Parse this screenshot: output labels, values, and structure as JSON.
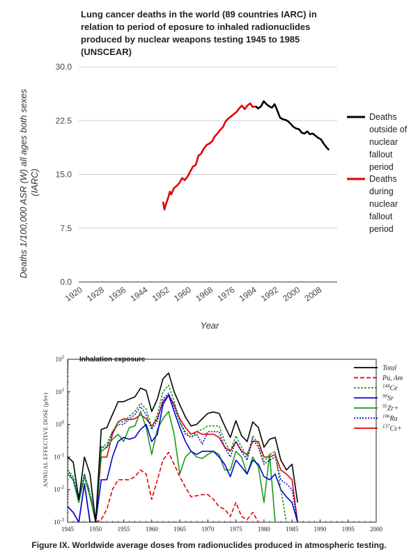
{
  "chart_data": [
    {
      "type": "line",
      "title": "Lung cancer deaths in the world (89 countries IARC) in relation to period of eposure to inhaled radionuclides produced by nuclear weapons testing 1945 to 1985 (UNSCEAR)",
      "xlabel": "Year",
      "ylabel": "Deaths 1/100,000 ASR (W) all ages both sexes (IARC)",
      "xlim": [
        1920,
        2015
      ],
      "ylim": [
        0,
        30
      ],
      "xticks": [
        "1920",
        "1928",
        "1936",
        "1944",
        "1952",
        "1960",
        "1968",
        "1976",
        "1984",
        "1992",
        "2000",
        "2008"
      ],
      "yticks": [
        "30.0",
        "22.5",
        "15.0",
        "7.5",
        "0.0"
      ],
      "grid": true,
      "legend_position": "right",
      "series": [
        {
          "name": "Deaths outside of nuclear fallout period",
          "color": "#000000",
          "x": [
            1985,
            1986,
            1987,
            1988,
            1989,
            1990,
            1991,
            1992,
            1993,
            1994,
            1995,
            1996,
            1997,
            1998,
            1999,
            2000,
            2001,
            2002,
            2003,
            2004,
            2005,
            2006,
            2007,
            2008,
            2009,
            2010,
            2011,
            2012
          ],
          "y": [
            24.5,
            24.2,
            24.5,
            25.2,
            24.8,
            24.5,
            24.3,
            24.8,
            23.9,
            22.9,
            22.7,
            22.6,
            22.4,
            22.0,
            21.6,
            21.4,
            21.3,
            20.8,
            20.7,
            21.0,
            20.6,
            20.7,
            20.4,
            20.1,
            19.9,
            19.3,
            18.8,
            18.4
          ]
        },
        {
          "name": "Deaths during nuclear fallout period",
          "color": "#e00000",
          "x": [
            1951,
            1951.5,
            1952,
            1953,
            1953.5,
            1954,
            1955,
            1956,
            1957,
            1958,
            1959,
            1960,
            1961,
            1962,
            1963,
            1964,
            1965,
            1966,
            1967,
            1968,
            1969,
            1970,
            1971,
            1972,
            1973,
            1974,
            1975,
            1976,
            1977,
            1978,
            1979,
            1980,
            1981,
            1982,
            1983,
            1984,
            1985
          ],
          "y": [
            11.2,
            10.1,
            10.8,
            11.9,
            12.6,
            12.2,
            13.1,
            13.4,
            13.8,
            14.5,
            14.2,
            14.7,
            15.4,
            16.1,
            16.3,
            17.6,
            17.9,
            18.6,
            19.1,
            19.3,
            19.6,
            20.3,
            20.7,
            21.2,
            21.6,
            22.4,
            22.8,
            23.1,
            23.4,
            23.7,
            24.2,
            24.6,
            24.1,
            24.6,
            24.9,
            24.4,
            24.5
          ]
        }
      ]
    },
    {
      "type": "line",
      "title": "Inhalation exposure",
      "ylabel": "ANNUAL EFFECTIVE DOSE (μSv)",
      "xlabel": "",
      "yscale": "log",
      "xlim": [
        1945,
        2000
      ],
      "ylim": [
        0.001,
        100
      ],
      "xticks": [
        "1945",
        "1950",
        "1955",
        "1960",
        "1965",
        "1970",
        "1975",
        "1980",
        "1985",
        "1990",
        "1995",
        "2000"
      ],
      "yticks_base": [
        "10",
        "10",
        "10",
        "10",
        "10",
        "10"
      ],
      "yticks_exp": [
        "2",
        "1",
        "0",
        "-1",
        "-2",
        "-3"
      ],
      "legend_position": "top-right",
      "series": [
        {
          "name": "Total",
          "color": "#000000",
          "dash": "solid",
          "x": [
            1945,
            1946,
            1947,
            1948,
            1949,
            1950,
            1951,
            1952,
            1953,
            1954,
            1955,
            1956,
            1957,
            1958,
            1959,
            1960,
            1961,
            1962,
            1963,
            1964,
            1965,
            1966,
            1967,
            1968,
            1969,
            1970,
            1971,
            1972,
            1973,
            1974,
            1975,
            1976,
            1977,
            1978,
            1979,
            1980,
            1981,
            1982,
            1983,
            1984,
            1985,
            1986
          ],
          "y": [
            0.1,
            0.07,
            0.005,
            0.1,
            0.03,
            0.001,
            0.7,
            0.8,
            2,
            5,
            5,
            6,
            7,
            13,
            11,
            2.5,
            6,
            25,
            38,
            10,
            4,
            1.7,
            0.9,
            1,
            1.5,
            2.2,
            2.4,
            2.2,
            0.9,
            0.4,
            1.3,
            0.45,
            0.3,
            1.2,
            0.8,
            0.2,
            0.35,
            0.4,
            0.08,
            0.04,
            0.06,
            0.004
          ]
        },
        {
          "name": "Pu, Am",
          "color": "#e00000",
          "dash": "6,3",
          "x": [
            1950,
            1951,
            1952,
            1953,
            1954,
            1955,
            1956,
            1957,
            1958,
            1959,
            1960,
            1961,
            1962,
            1963,
            1964,
            1965,
            1966,
            1967,
            1968,
            1969,
            1970,
            1971,
            1972,
            1973,
            1974,
            1975,
            1976,
            1977,
            1978,
            1979
          ],
          "y": [
            0.001,
            0.0012,
            0.0025,
            0.01,
            0.02,
            0.02,
            0.02,
            0.025,
            0.04,
            0.03,
            0.005,
            0.02,
            0.08,
            0.14,
            0.06,
            0.025,
            0.012,
            0.006,
            0.0065,
            0.007,
            0.007,
            0.005,
            0.003,
            0.0025,
            0.0015,
            0.004,
            0.0015,
            0.0012,
            0.002,
            0.001
          ]
        },
        {
          "name": "144Ce",
          "color": "#1a9a1a",
          "dash": "3,2",
          "x": [
            1945,
            1946,
            1947,
            1948,
            1949,
            1950,
            1951,
            1952,
            1953,
            1954,
            1955,
            1956,
            1957,
            1958,
            1959,
            1960,
            1961,
            1962,
            1963,
            1964,
            1965,
            1966,
            1967,
            1968,
            1969,
            1970,
            1971,
            1972,
            1973,
            1974,
            1975,
            1976,
            1977,
            1978,
            1979,
            1980,
            1981,
            1982,
            1983,
            1984
          ],
          "y": [
            0.04,
            0.025,
            0.006,
            0.03,
            0.008,
            0.001,
            0.2,
            0.25,
            0.6,
            1.2,
            1.2,
            1.8,
            2.5,
            4.5,
            3,
            0.8,
            2,
            10,
            16,
            5,
            1.2,
            0.6,
            0.4,
            0.6,
            0.7,
            0.9,
            0.9,
            0.9,
            0.3,
            0.15,
            0.45,
            0.2,
            0.1,
            0.45,
            0.25,
            0.07,
            0.12,
            0.15,
            0.01,
            0.001
          ]
        },
        {
          "name": "90Sr",
          "color": "#0000d0",
          "dash": "solid",
          "x": [
            1945,
            1946,
            1947,
            1948,
            1949,
            1950,
            1951,
            1952,
            1953,
            1954,
            1955,
            1956,
            1957,
            1958,
            1959,
            1960,
            1961,
            1962,
            1963,
            1964,
            1965,
            1966,
            1967,
            1968,
            1969,
            1970,
            1971,
            1972,
            1973,
            1974,
            1975,
            1976,
            1977,
            1978,
            1979,
            1980,
            1981,
            1982,
            1983,
            1984,
            1985,
            1986
          ],
          "y": [
            0.003,
            0.002,
            0.001,
            0.015,
            0.001,
            0.001,
            0.02,
            0.02,
            0.1,
            0.3,
            0.4,
            0.35,
            0.4,
            0.7,
            1,
            0.3,
            0.5,
            4,
            8,
            2.5,
            0.8,
            0.3,
            0.15,
            0.12,
            0.15,
            0.15,
            0.15,
            0.1,
            0.06,
            0.025,
            0.08,
            0.05,
            0.03,
            0.08,
            0.06,
            0.025,
            0.02,
            0.03,
            0.01,
            0.006,
            0.004,
            0.001
          ]
        },
        {
          "name": "95Zr+",
          "color": "#1a9a1a",
          "dash": "solid",
          "x": [
            1945,
            1946,
            1947,
            1948,
            1949,
            1950,
            1951,
            1952,
            1953,
            1954,
            1955,
            1956,
            1957,
            1958,
            1959,
            1960,
            1961,
            1962,
            1963,
            1964,
            1965,
            1966,
            1967,
            1968,
            1969,
            1970,
            1971,
            1972,
            1973,
            1974,
            1975,
            1976,
            1977,
            1978,
            1979,
            1980,
            1981,
            1982
          ],
          "y": [
            0.03,
            0.02,
            0.004,
            0.025,
            0.006,
            0.001,
            0.15,
            0.2,
            0.35,
            0.5,
            0.3,
            0.8,
            0.9,
            2.5,
            0.8,
            0.12,
            0.7,
            1.5,
            2.5,
            0.5,
            0.03,
            0.1,
            0.15,
            0.1,
            0.09,
            0.12,
            0.15,
            0.12,
            0.04,
            0.04,
            0.15,
            0.1,
            0.03,
            0.1,
            0.05,
            0.004,
            0.12,
            0.001
          ]
        },
        {
          "name": "106Ru",
          "color": "#0000d0",
          "dash": "2,2",
          "x": [
            1945,
            1946,
            1947,
            1948,
            1949,
            1950,
            1951,
            1952,
            1953,
            1954,
            1955,
            1956,
            1957,
            1958,
            1959,
            1960,
            1961,
            1962,
            1963,
            1964,
            1965,
            1966,
            1967,
            1968,
            1969,
            1970,
            1971,
            1972,
            1973,
            1974,
            1975,
            1976,
            1977,
            1978,
            1979,
            1980,
            1981,
            1982,
            1983,
            1984,
            1985,
            1986
          ],
          "y": [
            0.04,
            0.02,
            0.005,
            0.03,
            0.008,
            0.001,
            0.2,
            0.2,
            0.6,
            1.0,
            1.0,
            1.5,
            2.0,
            3.5,
            2,
            0.7,
            1.3,
            6,
            9,
            3.5,
            1.2,
            0.5,
            0.4,
            0.5,
            0.25,
            0.6,
            0.6,
            0.6,
            0.2,
            0.1,
            0.3,
            0.15,
            0.08,
            0.35,
            0.2,
            0.06,
            0.08,
            0.1,
            0.02,
            0.015,
            0.01,
            0.001
          ]
        },
        {
          "name": "137Cs+",
          "color": "#e00000",
          "dash": "solid",
          "x": [
            1945,
            1946,
            1947,
            1948,
            1949,
            1950,
            1951,
            1952,
            1953,
            1954,
            1955,
            1956,
            1957,
            1958,
            1959,
            1960,
            1961,
            1962,
            1963,
            1964,
            1965,
            1966,
            1967,
            1968,
            1969,
            1970,
            1971,
            1972,
            1973,
            1974,
            1975,
            1976,
            1977,
            1978,
            1979,
            1980,
            1981,
            1982,
            1983,
            1984,
            1985,
            1986
          ],
          "y": [
            0.003,
            0.002,
            0.001,
            0.015,
            0.001,
            0.001,
            0.1,
            0.1,
            0.5,
            1.2,
            1.5,
            1.4,
            1.5,
            2,
            1.5,
            0.9,
            1.5,
            5,
            8,
            4,
            1.5,
            0.8,
            0.5,
            0.6,
            0.5,
            0.5,
            0.5,
            0.4,
            0.2,
            0.15,
            0.3,
            0.15,
            0.12,
            0.3,
            0.3,
            0.1,
            0.1,
            0.12,
            0.04,
            0.03,
            0.02,
            0.001
          ]
        }
      ]
    }
  ],
  "legend2_labels": [
    {
      "base": "Total",
      "sup": ""
    },
    {
      "base": "Pu, Am",
      "sup": ""
    },
    {
      "base": "Ce",
      "sup": "144"
    },
    {
      "base": "Sr",
      "sup": "90"
    },
    {
      "base": "Zr+",
      "sup": "95"
    },
    {
      "base": "Ru",
      "sup": "106"
    },
    {
      "base": "Cs+",
      "sup": "137"
    }
  ],
  "legend1_lines": [
    [
      "Deaths",
      "outside of",
      "nuclear",
      "fallout",
      "period"
    ],
    [
      "Deaths",
      "during",
      "nuclear",
      "fallout",
      "period"
    ]
  ],
  "ylabel1_lines": [
    "Deaths 1/100,000 ASR (W) all ages both sexes",
    "(IARC)"
  ],
  "caption": "Figure IX.  Worldwide average doses from radionuclides produced in atmospheric testing."
}
